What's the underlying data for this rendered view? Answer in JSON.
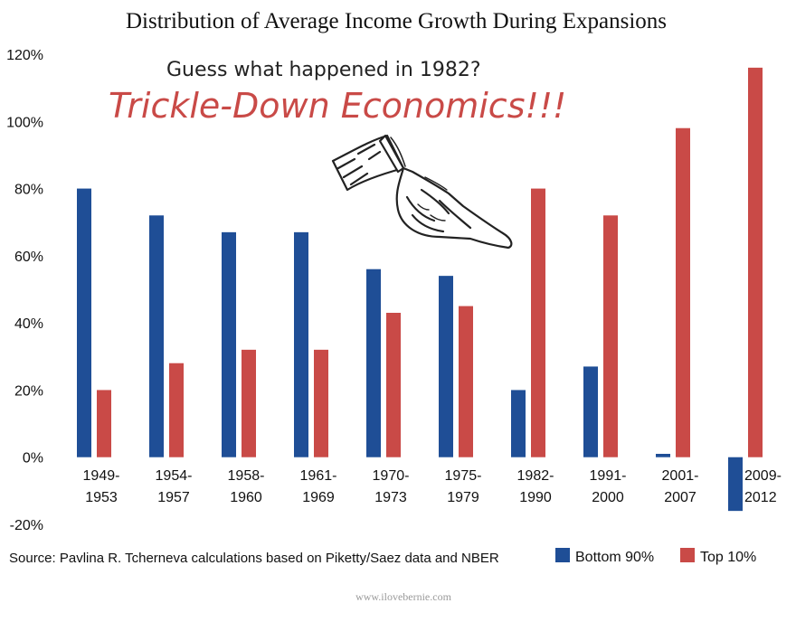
{
  "title": "Distribution of Average Income Growth During Expansions",
  "annotation": {
    "question": "Guess what happened in 1982?",
    "headline": "Trickle-Down Economics!!!"
  },
  "source": "Source: Pavlina R. Tcherneva calculations based on Piketty/Saez data and NBER",
  "watermark": "www.ilovebernie.com",
  "legend": {
    "bottom": "Bottom 90%",
    "top": "Top 10%"
  },
  "colors": {
    "bottom": "#1f4e96",
    "top": "#c94a47",
    "headline": "#c94a47"
  },
  "chart_data": {
    "type": "bar",
    "title": "Distribution of Average Income Growth During Expansions",
    "categories": [
      [
        "1949-",
        "1953"
      ],
      [
        "1954-",
        "1957"
      ],
      [
        "1958-",
        "1960"
      ],
      [
        "1961-",
        "1969"
      ],
      [
        "1970-",
        "1973"
      ],
      [
        "1975-",
        "1979"
      ],
      [
        "1982-",
        "1990"
      ],
      [
        "1991-",
        "2000"
      ],
      [
        "2001-",
        "2007"
      ],
      [
        "2009-",
        "2012"
      ]
    ],
    "series": [
      {
        "name": "Bottom 90%",
        "values": [
          80,
          72,
          67,
          67,
          56,
          54,
          20,
          27,
          1,
          -16
        ]
      },
      {
        "name": "Top 10%",
        "values": [
          20,
          28,
          32,
          32,
          43,
          45,
          80,
          72,
          98,
          116
        ]
      }
    ],
    "ylim": [
      -20,
      120
    ],
    "yticks": [
      "-20%",
      "0%",
      "20%",
      "40%",
      "60%",
      "80%",
      "100%",
      "120%"
    ],
    "ytick_values": [
      -20,
      0,
      20,
      40,
      60,
      80,
      100,
      120
    ],
    "grid": false,
    "legend_position": "bottom-right"
  }
}
